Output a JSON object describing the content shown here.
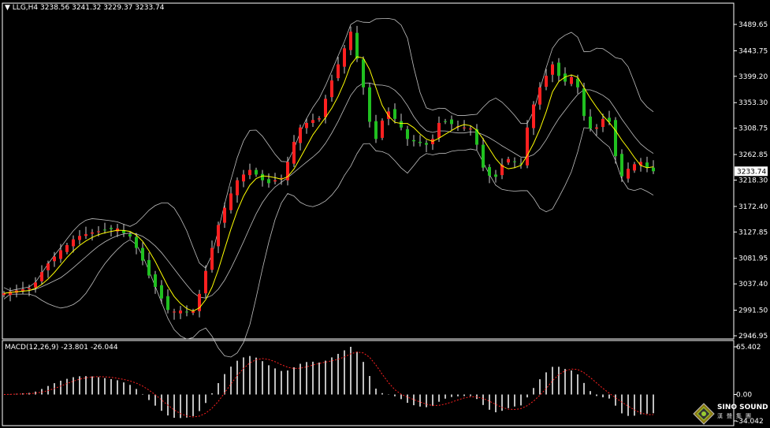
{
  "header": {
    "symbol": "LLG,H4",
    "ohlc": "3238.56 3241.32 3229.37 3233.74"
  },
  "macd_label": {
    "name": "MACD(12,26,9)",
    "values": "-23.801 -26.044"
  },
  "watermark": {
    "name": "SINO SOUND",
    "chinese": "漢聲集團"
  },
  "colors": {
    "background": "#000000",
    "bull": "#ff2020",
    "bear": "#20c020",
    "ma": "#ffff00",
    "bands": "#c0c0c0",
    "signal": "#ff2020",
    "histogram": "#ffffff"
  },
  "chart_data": {
    "type": "candlestick",
    "timeframe": "H4",
    "bull_color": "red",
    "bear_color": "green",
    "last_price": "3233.74",
    "price_ticks": [
      "3489.65",
      "3443.75",
      "3399.20",
      "3353.30",
      "3308.75",
      "3262.85",
      "3218.30",
      "3172.40",
      "3127.85",
      "3081.95",
      "3037.40",
      "2991.50",
      "2946.95"
    ],
    "ylim": [
      2946.95,
      3489.65
    ],
    "closes": [
      3021,
      3024,
      3026,
      3028,
      3030,
      3040,
      3058,
      3073,
      3085,
      3096,
      3105,
      3115,
      3121,
      3124,
      3127,
      3129,
      3131,
      3133,
      3134,
      3126,
      3120,
      3100,
      3078,
      3052,
      3032,
      3012,
      2992,
      2989,
      2991,
      2988,
      2990,
      3020,
      3060,
      3100,
      3140,
      3170,
      3195,
      3218,
      3228,
      3236,
      3228,
      3218,
      3213,
      3218,
      3222,
      3250,
      3285,
      3310,
      3318,
      3323,
      3326,
      3360,
      3392,
      3420,
      3448,
      3477,
      3430,
      3380,
      3320,
      3290,
      3322,
      3338,
      3325,
      3310,
      3290,
      3286,
      3283,
      3280,
      3290,
      3318,
      3320,
      3316,
      3312,
      3310,
      3308,
      3280,
      3240,
      3226,
      3224,
      3245,
      3255,
      3250,
      3246,
      3310,
      3350,
      3380,
      3400,
      3420,
      3400,
      3390,
      3398,
      3380,
      3330,
      3308,
      3310,
      3325,
      3320,
      3260,
      3225,
      3238,
      3246,
      3250,
      3240,
      3233.74
    ],
    "indicators": [
      "Bollinger Bands",
      "Moving Average",
      "MACD(12,26,9)"
    ],
    "macd": {
      "ticks": [
        "65.402",
        "0.00",
        "-34.042"
      ],
      "ylim": [
        -34.042,
        65.402
      ],
      "last_macd": -23.801,
      "last_signal": -26.044
    }
  }
}
